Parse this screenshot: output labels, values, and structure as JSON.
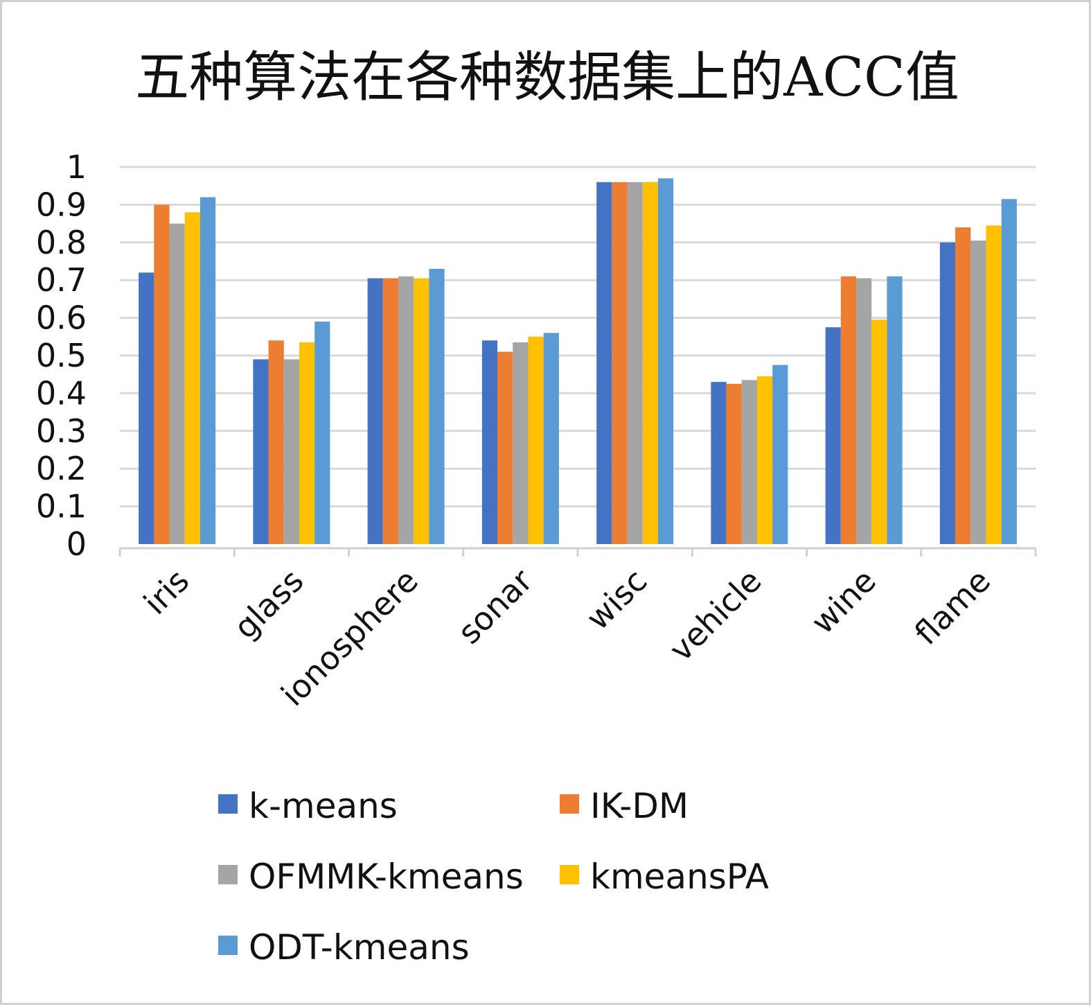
{
  "chart_data": {
    "type": "bar",
    "title": "五种算法在各种数据集上的ACC值",
    "xlabel": "",
    "ylabel": "",
    "ylim": [
      0,
      1
    ],
    "yticks": [
      "0",
      "0.1",
      "0.2",
      "0.3",
      "0.4",
      "0.5",
      "0.6",
      "0.7",
      "0.8",
      "0.9",
      "1"
    ],
    "grid": true,
    "legend_position": "bottom",
    "categories": [
      "iris",
      "glass",
      "ionosphere",
      "sonar",
      "wisc",
      "vehicle",
      "wine",
      "flame"
    ],
    "series": [
      {
        "name": "k-means",
        "color": "#4472C4",
        "values": [
          0.72,
          0.49,
          0.705,
          0.54,
          0.96,
          0.43,
          0.575,
          0.8
        ]
      },
      {
        "name": "IK-DM",
        "color": "#ED7D31",
        "values": [
          0.9,
          0.54,
          0.705,
          0.51,
          0.96,
          0.425,
          0.71,
          0.84
        ]
      },
      {
        "name": "OFMMK-kmeans",
        "color": "#A5A5A5",
        "values": [
          0.85,
          0.49,
          0.71,
          0.535,
          0.96,
          0.435,
          0.705,
          0.805
        ]
      },
      {
        "name": "kmeansPA",
        "color": "#FFC000",
        "values": [
          0.88,
          0.535,
          0.705,
          0.55,
          0.96,
          0.445,
          0.595,
          0.845
        ]
      },
      {
        "name": "ODT-kmeans",
        "color": "#5B9BD5",
        "values": [
          0.92,
          0.59,
          0.73,
          0.56,
          0.97,
          0.475,
          0.71,
          0.915
        ]
      }
    ]
  }
}
